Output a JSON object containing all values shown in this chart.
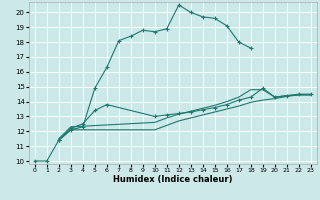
{
  "xlabel": "Humidex (Indice chaleur)",
  "bg_color": "#cce8e8",
  "grid_color": "#ffffff",
  "line_color": "#1a7a6e",
  "xlim": [
    -0.5,
    23.5
  ],
  "ylim": [
    9.8,
    20.7
  ],
  "xticks": [
    0,
    1,
    2,
    3,
    4,
    5,
    6,
    7,
    8,
    9,
    10,
    11,
    12,
    13,
    14,
    15,
    16,
    17,
    18,
    19,
    20,
    21,
    22,
    23
  ],
  "yticks": [
    10,
    11,
    12,
    13,
    14,
    15,
    16,
    17,
    18,
    19,
    20
  ],
  "series": [
    {
      "x": [
        0,
        1,
        2,
        3,
        4,
        5,
        6,
        7,
        8,
        9,
        10,
        11,
        12,
        13,
        14,
        15,
        16,
        17,
        18
      ],
      "y": [
        10,
        10,
        11.4,
        12.1,
        12.3,
        14.9,
        16.3,
        18.1,
        18.4,
        18.8,
        18.7,
        18.9,
        20.5,
        20.0,
        19.7,
        19.6,
        19.1,
        18.0,
        17.6
      ],
      "marker": true
    },
    {
      "x": [
        2,
        3,
        4,
        5,
        6,
        10,
        11,
        12,
        13,
        14,
        15,
        16,
        17,
        18,
        19,
        20,
        21,
        22,
        23
      ],
      "y": [
        11.4,
        12.2,
        12.5,
        13.4,
        13.8,
        13.0,
        13.1,
        13.2,
        13.3,
        13.45,
        13.6,
        13.8,
        14.1,
        14.3,
        14.9,
        14.3,
        14.4,
        14.5,
        14.5
      ],
      "marker": true
    },
    {
      "x": [
        2,
        3,
        10,
        11,
        12,
        13,
        14,
        15,
        16,
        17,
        18,
        19,
        20,
        21,
        22,
        23
      ],
      "y": [
        11.4,
        12.1,
        12.1,
        12.4,
        12.7,
        12.9,
        13.1,
        13.3,
        13.5,
        13.7,
        13.95,
        14.1,
        14.2,
        14.35,
        14.45,
        14.45
      ],
      "marker": false
    },
    {
      "x": [
        2,
        3,
        10,
        11,
        12,
        13,
        14,
        15,
        16,
        17,
        18,
        19,
        20,
        21,
        22,
        23
      ],
      "y": [
        11.5,
        12.3,
        12.6,
        12.9,
        13.15,
        13.35,
        13.55,
        13.75,
        14.0,
        14.3,
        14.8,
        14.8,
        14.3,
        14.4,
        14.45,
        14.45
      ],
      "marker": false
    }
  ]
}
